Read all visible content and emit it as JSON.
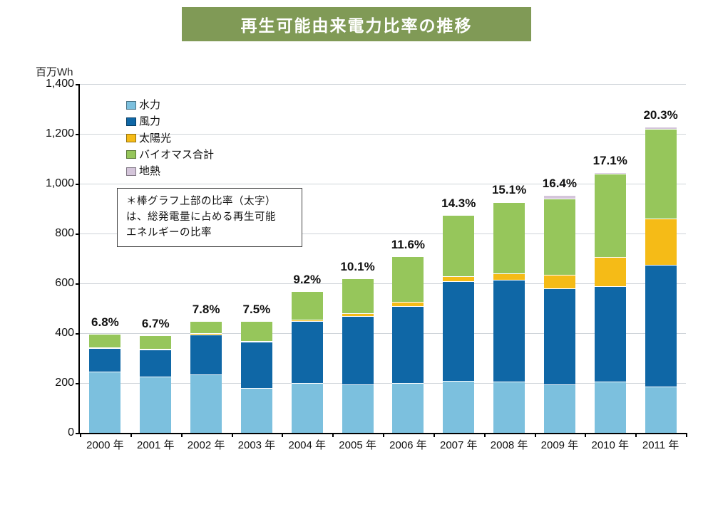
{
  "title": {
    "text": "再生可能由来電力比率の推移",
    "bg_color": "#809a56",
    "text_color": "#ffffff",
    "fontsize": 23
  },
  "chart": {
    "type": "stacked-bar",
    "y_axis": {
      "label": "百万Wh",
      "min": 0,
      "max": 1400,
      "tick_step": 200,
      "ticks": [
        "0",
        "200",
        "400",
        "600",
        "800",
        "1,000",
        "1,200",
        "1,400"
      ],
      "tick_fontsize": 16
    },
    "grid_color": "#cfd4d9",
    "background_color": "#ffffff",
    "bar_width_ratio": 0.62,
    "bar_border_color": "#ffffff",
    "categories": [
      "2000 年",
      "2001 年",
      "2002 年",
      "2003 年",
      "2004 年",
      "2005 年",
      "2006 年",
      "2007 年",
      "2008 年",
      "2009 年",
      "2010 年",
      "2011 年"
    ],
    "series": [
      {
        "key": "hydro",
        "label": "水力",
        "color": "#7cc0de"
      },
      {
        "key": "wind",
        "label": "風力",
        "color": "#0f67a6"
      },
      {
        "key": "solar",
        "label": "太陽光",
        "color": "#f5bb17"
      },
      {
        "key": "biomass",
        "label": "バイオマス合計",
        "color": "#96c65b"
      },
      {
        "key": "geo",
        "label": "地熱",
        "color": "#d4c5da"
      }
    ],
    "values": {
      "hydro": [
        245,
        225,
        235,
        180,
        200,
        195,
        200,
        210,
        205,
        195,
        205,
        185
      ],
      "wind": [
        95,
        110,
        160,
        185,
        250,
        275,
        310,
        400,
        410,
        385,
        385,
        490
      ],
      "solar": [
        2,
        2,
        4,
        3,
        5,
        10,
        15,
        20,
        25,
        55,
        115,
        185
      ],
      "biomass": [
        55,
        55,
        50,
        80,
        113,
        140,
        185,
        245,
        285,
        305,
        335,
        360
      ],
      "geo": [
        0,
        0,
        0,
        0,
        0,
        0,
        0,
        0,
        5,
        15,
        5,
        10
      ]
    },
    "percent_labels": [
      "6.8%",
      "6.7%",
      "7.8%",
      "7.5%",
      "9.2%",
      "10.1%",
      "11.6%",
      "14.3%",
      "15.1%",
      "16.4%",
      "17.1%",
      "20.3%"
    ],
    "percent_fontsize": 17
  },
  "legend": {
    "fontsize": 15,
    "marker": "■"
  },
  "note": {
    "lines": [
      "＊棒グラフ上部の比率（太字）",
      "は、総発電量に占める再生可能",
      "エネルギーの比率"
    ],
    "border_color": "#444444",
    "fontsize": 14.5
  }
}
